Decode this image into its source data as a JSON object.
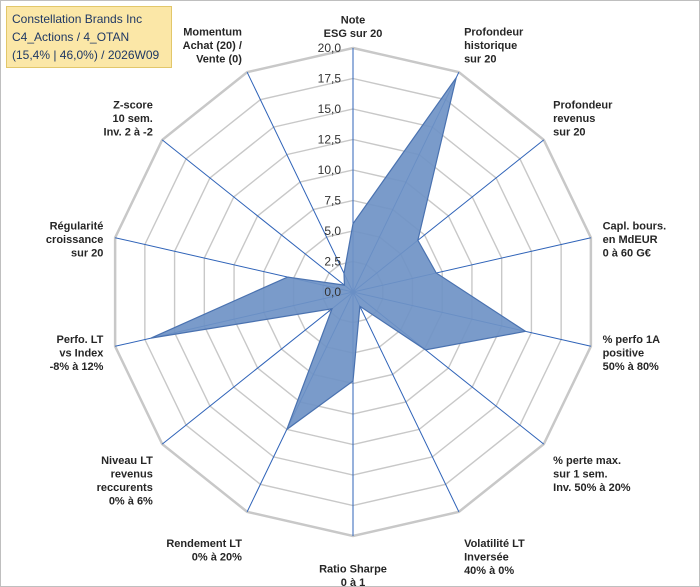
{
  "chart_data": {
    "type": "radar",
    "title_lines": [
      "Constellation Brands Inc",
      "C4_Actions / 4_OTAN",
      "(15,4% | 46,0%) / 2026W09"
    ],
    "rlim": [
      0,
      20
    ],
    "ticks": [
      "0,0",
      "2,5",
      "5,0",
      "7,5",
      "10,0",
      "12,5",
      "15,0",
      "17,5",
      "20,0"
    ],
    "axes": [
      {
        "label": [
          "Note",
          "ESG sur 20"
        ],
        "value": 5.6
      },
      {
        "label": [
          "Profondeur",
          "historique",
          "sur 20"
        ],
        "value": 19.5
      },
      {
        "label": [
          "Profondeur",
          "revenus",
          "sur 20"
        ],
        "value": 6.8
      },
      {
        "label": [
          "Capl. bours.",
          "en MdEUR",
          "0 à 60 G€"
        ],
        "value": 7.0
      },
      {
        "label": [
          "% perfo 1A",
          "positive",
          "50% à 80%"
        ],
        "value": 14.5
      },
      {
        "label": [
          "% perte max.",
          "sur 1 sem.",
          "Inv. 50% à 20%"
        ],
        "value": 7.6
      },
      {
        "label": [
          "Volatilité LT",
          "Inversée",
          "40% à 0%"
        ],
        "value": 1.3
      },
      {
        "label": [
          "Ratio Sharpe",
          "0 à 1"
        ],
        "value": 7.3
      },
      {
        "label": [
          "Rendement LT",
          "0% à 20%"
        ],
        "value": 12.5
      },
      {
        "label": [
          "Niveau LT",
          "revenus",
          "reccurents",
          "0% à 6%"
        ],
        "value": 2.2
      },
      {
        "label": [
          "Perfo. LT",
          "vs Index",
          "-8% à 12%"
        ],
        "value": 17.0
      },
      {
        "label": [
          "Régularité",
          "croissance",
          "sur 20"
        ],
        "value": 5.5
      },
      {
        "label": [
          "Z-score",
          "10 sem.",
          "Inv. 2 à -2"
        ],
        "value": 0.9
      },
      {
        "label": [
          "Momentum",
          "Achat (20) /",
          "Vente (0)"
        ],
        "value": 1.7
      }
    ],
    "colors": {
      "fill": "#6f93c6",
      "stroke": "#4a72b0",
      "spoke": "#2f63b8",
      "grid": "#c8c8c8"
    }
  }
}
